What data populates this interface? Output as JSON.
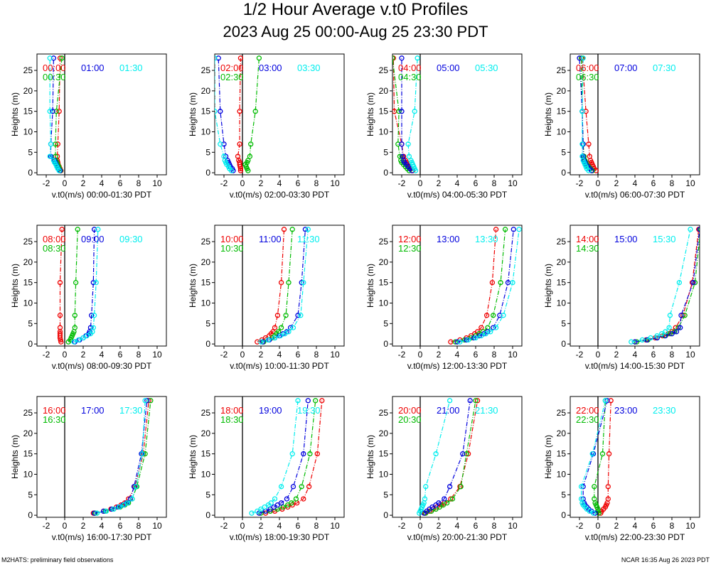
{
  "title": "1/2 Hour Average v.t0 Profiles",
  "subtitle": "2023 Aug 25 00:00-Aug 25 23:30 PDT",
  "footer_left": "M2HATS: preliminary field observations",
  "footer_right": "NCAR 16:35 Aug 26 2023 PDT",
  "colors": {
    "s0": "#ee0000",
    "s1": "#00bb00",
    "s2": "#0000dd",
    "s3": "#00eeee",
    "axis": "#000000"
  },
  "chart_data": {
    "type": "line",
    "ylabel": "Heights (m)",
    "xlabel_prefix": "v.t0(m/s)",
    "xlim": [
      -3,
      11
    ],
    "ylim": [
      -0.5,
      29
    ],
    "xticks": [
      -2,
      0,
      2,
      4,
      6,
      8,
      10
    ],
    "xticklabels": [
      "-2",
      "0",
      "2",
      "4",
      "6",
      "8",
      "10"
    ],
    "yticks": [
      0,
      5,
      10,
      15,
      20,
      25
    ],
    "yticklabels": [
      "0",
      "5",
      "10",
      "15",
      "20",
      "25"
    ],
    "heights": [
      0.5,
      1,
      1.5,
      2,
      2.5,
      3,
      4,
      7,
      15,
      28
    ],
    "panels": [
      {
        "label": "00:00-01:30 PDT",
        "series": [
          {
            "name": "00:00",
            "values": [
              -0.4,
              -0.5,
              -0.6,
              -0.7,
              -0.75,
              -0.8,
              -0.8,
              -0.75,
              -0.6,
              -0.5
            ]
          },
          {
            "name": "00:30",
            "values": [
              -0.45,
              -0.55,
              -0.65,
              -0.75,
              -0.85,
              -0.95,
              -1.0,
              -1.0,
              -0.9,
              -0.3
            ]
          },
          {
            "name": "01:00",
            "values": [
              -0.5,
              -0.7,
              -0.8,
              -0.9,
              -1.0,
              -1.1,
              -1.5,
              -1.5,
              -1.3,
              -1.2
            ]
          },
          {
            "name": "01:30",
            "values": [
              -0.6,
              -0.75,
              -0.85,
              -0.95,
              -1.1,
              -1.2,
              -1.6,
              -1.5,
              -1.6,
              -1.6
            ]
          }
        ]
      },
      {
        "label": "02:00-03:30 PDT",
        "series": [
          {
            "name": "02:00",
            "values": [
              -0.2,
              -0.2,
              -0.25,
              -0.3,
              -0.3,
              -0.4,
              -0.5,
              -0.3,
              -0.3,
              -0.2
            ]
          },
          {
            "name": "02:30",
            "values": [
              0.6,
              0.5,
              0.4,
              0.3,
              0.5,
              0.6,
              0.8,
              0.9,
              1.4,
              1.8
            ]
          },
          {
            "name": "03:00",
            "values": [
              -1.0,
              -1.1,
              -1.3,
              -1.4,
              -1.5,
              -1.6,
              -1.8,
              -2.0,
              -2.4,
              -2.6
            ]
          },
          {
            "name": "03:30",
            "values": [
              -1.2,
              -1.4,
              -1.5,
              -1.7,
              -1.8,
              -1.9,
              -2.0,
              -2.4,
              -3.0,
              -3.0
            ]
          }
        ]
      },
      {
        "label": "04:00-05:30 PDT",
        "series": [
          {
            "name": "04:00",
            "values": [
              -0.8,
              -1.0,
              -1.2,
              -1.4,
              -1.5,
              -1.6,
              -1.8,
              -2.0,
              -2.8,
              -2.9
            ]
          },
          {
            "name": "04:30",
            "values": [
              -1.2,
              -1.4,
              -1.6,
              -1.8,
              -2.0,
              -2.1,
              -2.2,
              -2.4,
              -2.3,
              -3.0
            ]
          },
          {
            "name": "05:00",
            "values": [
              -0.9,
              -1.1,
              -1.3,
              -1.5,
              -1.7,
              -1.8,
              -1.9,
              -2.0,
              -2.0,
              -2.0
            ]
          },
          {
            "name": "05:30",
            "values": [
              -0.5,
              -0.6,
              -0.7,
              -0.8,
              -0.9,
              -1.0,
              -1.2,
              -1.3,
              -0.6,
              -0.3
            ]
          }
        ]
      },
      {
        "label": "06:00-07:30 PDT",
        "series": [
          {
            "name": "06:00",
            "values": [
              -0.2,
              -0.4,
              -0.5,
              -0.6,
              -0.7,
              -0.8,
              -0.9,
              -1.0,
              -1.3,
              -1.7
            ]
          },
          {
            "name": "06:30",
            "values": [
              -0.6,
              -0.8,
              -1.0,
              -1.2,
              -1.3,
              -1.4,
              -1.5,
              -1.6,
              -1.7,
              -1.8
            ]
          },
          {
            "name": "07:00",
            "values": [
              -0.7,
              -0.9,
              -1.1,
              -1.3,
              -1.4,
              -1.5,
              -1.6,
              -1.6,
              -1.7,
              -2.0
            ]
          },
          {
            "name": "07:30",
            "values": [
              -1.0,
              -1.2,
              -1.3,
              -1.4,
              -1.5,
              -1.6,
              -1.7,
              -1.7,
              -1.7,
              -1.6
            ]
          }
        ]
      },
      {
        "label": "08:00-09:30 PDT",
        "series": [
          {
            "name": "08:00",
            "values": [
              -0.4,
              -0.45,
              -0.5,
              -0.5,
              -0.5,
              -0.5,
              -0.5,
              -0.5,
              -0.5,
              -0.3
            ]
          },
          {
            "name": "08:30",
            "values": [
              0.4,
              0.6,
              0.7,
              0.8,
              0.9,
              1.0,
              1.1,
              1.1,
              1.2,
              1.4
            ]
          },
          {
            "name": "09:00",
            "values": [
              1.1,
              1.6,
              2.0,
              2.3,
              2.6,
              2.7,
              2.8,
              2.9,
              3.1,
              3.2
            ]
          },
          {
            "name": "09:30",
            "values": [
              1.0,
              1.5,
              2.0,
              2.4,
              2.8,
              3.0,
              3.1,
              3.2,
              3.4,
              3.6
            ]
          }
        ]
      },
      {
        "label": "10:00-11:30 PDT",
        "series": [
          {
            "name": "10:00",
            "values": [
              1.6,
              2.1,
              2.5,
              2.9,
              3.1,
              3.3,
              3.5,
              3.8,
              4.2,
              4.5
            ]
          },
          {
            "name": "10:30",
            "values": [
              2.3,
              2.8,
              3.2,
              3.5,
              3.7,
              3.9,
              4.2,
              4.7,
              5.0,
              5.4
            ]
          },
          {
            "name": "11:00",
            "values": [
              2.2,
              2.9,
              3.5,
              4.0,
              4.4,
              4.8,
              5.2,
              6.0,
              6.4,
              6.8
            ]
          },
          {
            "name": "11:30",
            "values": [
              2.0,
              2.8,
              3.5,
              4.1,
              4.6,
              5.0,
              5.5,
              6.3,
              6.6,
              7.1
            ]
          }
        ]
      },
      {
        "label": "12:00-13:30 PDT",
        "series": [
          {
            "name": "12:00",
            "values": [
              3.3,
              4.3,
              5.0,
              5.5,
              5.9,
              6.2,
              6.6,
              7.2,
              7.8,
              8.2
            ]
          },
          {
            "name": "12:30",
            "values": [
              3.8,
              4.8,
              5.5,
              6.0,
              6.4,
              6.8,
              7.3,
              7.9,
              8.7,
              9.2
            ]
          },
          {
            "name": "13:00",
            "values": [
              4.0,
              5.0,
              5.8,
              6.4,
              6.9,
              7.3,
              7.9,
              8.6,
              9.5,
              10.1
            ]
          },
          {
            "name": "13:30",
            "values": [
              4.3,
              5.2,
              6.0,
              6.6,
              7.1,
              7.6,
              8.2,
              9.0,
              10.0,
              10.7
            ]
          }
        ]
      },
      {
        "label": "14:00-15:30 PDT",
        "series": [
          {
            "name": "14:00",
            "values": [
              4.0,
              5.2,
              6.2,
              7.0,
              7.6,
              8.0,
              8.4,
              9.2,
              10.2,
              10.9
            ]
          },
          {
            "name": "14:30",
            "values": [
              4.2,
              5.4,
              6.4,
              7.2,
              7.8,
              8.3,
              8.7,
              9.4,
              10.5,
              11.1
            ]
          },
          {
            "name": "15:00",
            "values": [
              4.0,
              5.3,
              6.4,
              7.3,
              8.0,
              8.5,
              8.9,
              9.0,
              10.3,
              11.0
            ]
          },
          {
            "name": "15:30",
            "values": [
              3.6,
              4.8,
              5.7,
              6.4,
              6.9,
              7.3,
              7.7,
              7.8,
              8.8,
              10.0
            ]
          }
        ]
      },
      {
        "label": "16:00-17:30 PDT",
        "series": [
          {
            "name": "16:00",
            "values": [
              3.1,
              4.2,
              5.0,
              5.6,
              6.1,
              6.5,
              6.9,
              7.6,
              8.5,
              9.1
            ]
          },
          {
            "name": "16:30",
            "values": [
              3.3,
              4.4,
              5.3,
              6.0,
              6.5,
              6.9,
              7.3,
              7.8,
              8.7,
              9.3
            ]
          },
          {
            "name": "17:00",
            "values": [
              3.2,
              4.2,
              5.1,
              5.8,
              6.3,
              6.7,
              7.1,
              7.5,
              8.3,
              8.9
            ]
          },
          {
            "name": "17:30",
            "values": [
              3.5,
              4.5,
              5.3,
              5.9,
              6.4,
              6.8,
              7.3,
              7.7,
              8.4,
              8.7
            ]
          }
        ]
      },
      {
        "label": "18:00-19:30 PDT",
        "series": [
          {
            "name": "18:00",
            "values": [
              2.5,
              3.5,
              4.3,
              4.9,
              5.4,
              5.9,
              6.6,
              7.2,
              8.1,
              8.6
            ]
          },
          {
            "name": "18:30",
            "values": [
              2.0,
              3.0,
              3.8,
              4.4,
              4.9,
              5.3,
              5.8,
              6.4,
              7.3,
              7.9
            ]
          },
          {
            "name": "19:00",
            "values": [
              1.8,
              2.5,
              3.0,
              3.4,
              3.8,
              4.2,
              4.8,
              5.5,
              6.6,
              7.1
            ]
          },
          {
            "name": "19:30",
            "values": [
              1.0,
              1.6,
              2.0,
              2.4,
              2.8,
              3.1,
              3.5,
              4.2,
              5.4,
              6.0
            ]
          }
        ]
      },
      {
        "label": "20:00-21:30 PDT",
        "series": [
          {
            "name": "20:00",
            "values": [
              0.5,
              1.0,
              1.4,
              1.8,
              2.3,
              2.6,
              3.3,
              4.3,
              5.2,
              6.2
            ]
          },
          {
            "name": "20:30",
            "values": [
              0.6,
              1.2,
              1.7,
              2.1,
              2.5,
              2.9,
              3.5,
              4.4,
              5.0,
              6.0
            ]
          },
          {
            "name": "21:00",
            "values": [
              0.4,
              0.7,
              1.0,
              1.3,
              1.7,
              2.0,
              2.6,
              3.2,
              4.6,
              5.4
            ]
          },
          {
            "name": "21:30",
            "values": [
              -0.1,
              0.0,
              0.1,
              0.2,
              0.3,
              0.4,
              0.5,
              0.6,
              1.7,
              3.2
            ]
          }
        ]
      },
      {
        "label": "22:00-23:30 PDT",
        "series": [
          {
            "name": "22:00",
            "values": [
              0.3,
              0.4,
              0.6,
              0.8,
              0.9,
              1.0,
              1.1,
              1.1,
              1.2,
              1.4
            ]
          },
          {
            "name": "22:30",
            "values": [
              0.1,
              0.0,
              0.0,
              -0.1,
              -0.2,
              -0.3,
              -0.4,
              -0.4,
              0.5,
              0.8
            ]
          },
          {
            "name": "23:00",
            "values": [
              -0.3,
              -0.7,
              -1.0,
              -1.2,
              -1.4,
              -1.5,
              -1.6,
              -1.6,
              -0.5,
              1.0
            ]
          },
          {
            "name": "23:30",
            "values": [
              -0.5,
              -0.9,
              -1.2,
              -1.4,
              -1.6,
              -1.7,
              -1.8,
              -1.8,
              -0.6,
              0.8
            ]
          }
        ]
      }
    ]
  }
}
